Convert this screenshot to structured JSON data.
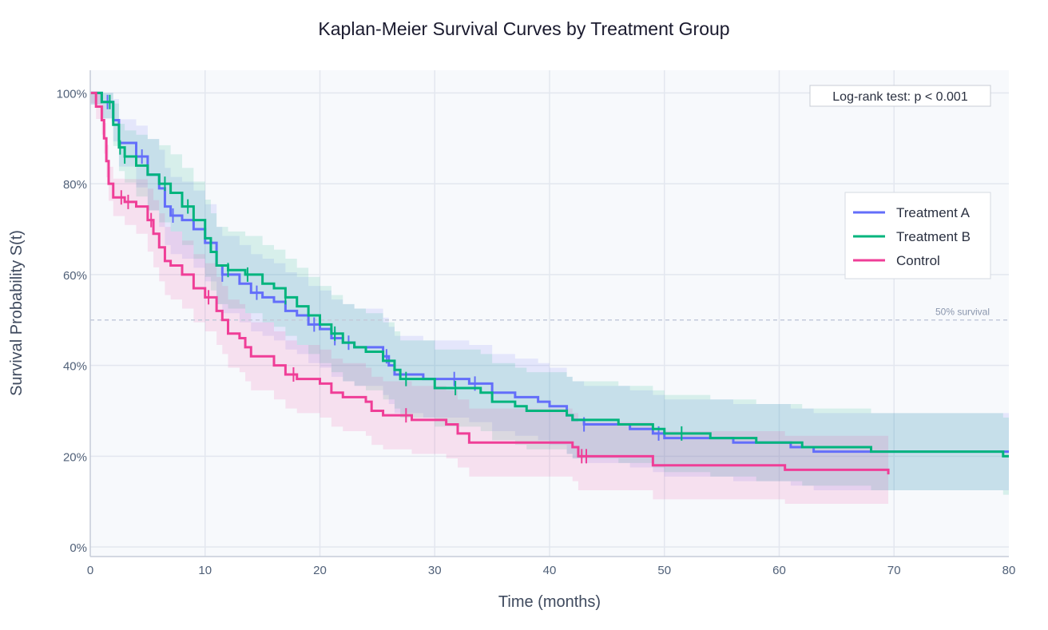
{
  "chart_data": {
    "type": "line",
    "title": "Kaplan-Meier Survival Curves by Treatment Group",
    "xlabel": "Time (months)",
    "ylabel": "Survival Probability S(t)",
    "xlim": [
      0,
      80
    ],
    "ylim": [
      -0.021,
      1.05
    ],
    "xticks": [
      0,
      10,
      20,
      30,
      40,
      50,
      60,
      70,
      80
    ],
    "yticks": [
      0,
      0.2,
      0.4,
      0.6,
      0.8,
      1.0
    ],
    "ytick_labels": [
      "0%",
      "20%",
      "40%",
      "60%",
      "80%",
      "100%"
    ],
    "grid": true,
    "legend_position": "right",
    "reference_line": {
      "y": 0.5,
      "label": "50% survival"
    },
    "annotation": "Log-rank test: p < 0.001",
    "series": [
      {
        "name": "Treatment A",
        "color": "#636efa",
        "ci_halfwidth": 0.085,
        "t": [
          0,
          1,
          2,
          2.5,
          4,
          5,
          6,
          6.5,
          7,
          8,
          9,
          10,
          11,
          11.5,
          13,
          14,
          15,
          16,
          17,
          18,
          19,
          20,
          21,
          22,
          23,
          25.5,
          26,
          26.5,
          29,
          33,
          35,
          37,
          39,
          40,
          41.5,
          42,
          43,
          47,
          49,
          50,
          56,
          61,
          63,
          80
        ],
        "s": [
          1,
          0.98,
          0.94,
          0.89,
          0.86,
          0.82,
          0.79,
          0.75,
          0.73,
          0.72,
          0.7,
          0.67,
          0.62,
          0.6,
          0.58,
          0.56,
          0.55,
          0.54,
          0.52,
          0.51,
          0.49,
          0.48,
          0.46,
          0.45,
          0.44,
          0.42,
          0.4,
          0.38,
          0.37,
          0.36,
          0.34,
          0.33,
          0.32,
          0.31,
          0.29,
          0.28,
          0.27,
          0.26,
          0.25,
          0.24,
          0.23,
          0.22,
          0.21,
          0.21
        ],
        "censored": [
          1.5,
          4.5,
          7.2,
          11.5,
          14.5,
          19.5,
          21.3,
          22.5,
          25.8,
          31.7,
          33.5,
          43,
          49.5
        ]
      },
      {
        "name": "Treatment B",
        "color": "#00b47d",
        "ci_halfwidth": 0.085,
        "t": [
          0,
          1,
          2,
          2.5,
          3,
          4,
          5,
          6,
          7,
          8,
          9,
          10,
          10.5,
          11,
          12,
          13.5,
          15,
          16,
          17,
          18,
          19,
          20,
          21,
          22,
          23,
          24,
          25.5,
          26.5,
          27,
          30,
          34,
          35,
          37,
          38,
          41.5,
          42,
          46,
          49,
          50,
          54,
          58,
          62,
          68,
          79.5,
          80
        ],
        "s": [
          1,
          0.98,
          0.93,
          0.88,
          0.86,
          0.84,
          0.82,
          0.8,
          0.78,
          0.75,
          0.72,
          0.68,
          0.65,
          0.62,
          0.61,
          0.6,
          0.58,
          0.57,
          0.55,
          0.53,
          0.51,
          0.49,
          0.47,
          0.45,
          0.44,
          0.43,
          0.41,
          0.39,
          0.37,
          0.35,
          0.34,
          0.32,
          0.31,
          0.3,
          0.29,
          0.28,
          0.27,
          0.26,
          0.25,
          0.24,
          0.23,
          0.22,
          0.21,
          0.2,
          0.2
        ],
        "censored": [
          1.7,
          2.6,
          3,
          6.5,
          8.5,
          12,
          13.7,
          17,
          21.3,
          27.5,
          31.8,
          51.5
        ]
      },
      {
        "name": "Control",
        "color": "#ef3e97",
        "ci_halfwidth": 0.075,
        "t": [
          0,
          0.5,
          1,
          1.2,
          1.4,
          1.6,
          2,
          3,
          4,
          5,
          5.5,
          6,
          6.5,
          7,
          8,
          9,
          10,
          11,
          11.5,
          12,
          13,
          13.5,
          14,
          16,
          17,
          18,
          20,
          21,
          22,
          24,
          24.5,
          25.5,
          28,
          31,
          32,
          33,
          42,
          42.5,
          49,
          60.5,
          69.5
        ],
        "s": [
          1,
          0.97,
          0.94,
          0.9,
          0.85,
          0.8,
          0.77,
          0.76,
          0.75,
          0.72,
          0.69,
          0.66,
          0.63,
          0.62,
          0.6,
          0.57,
          0.55,
          0.52,
          0.5,
          0.47,
          0.46,
          0.44,
          0.42,
          0.4,
          0.38,
          0.37,
          0.36,
          0.34,
          0.33,
          0.32,
          0.3,
          0.29,
          0.28,
          0.27,
          0.25,
          0.23,
          0.22,
          0.2,
          0.18,
          0.17,
          0.16
        ],
        "censored": [
          2.7,
          3.3,
          5.3,
          10.3,
          17.7,
          27.5,
          42.8,
          43.2
        ]
      }
    ]
  }
}
